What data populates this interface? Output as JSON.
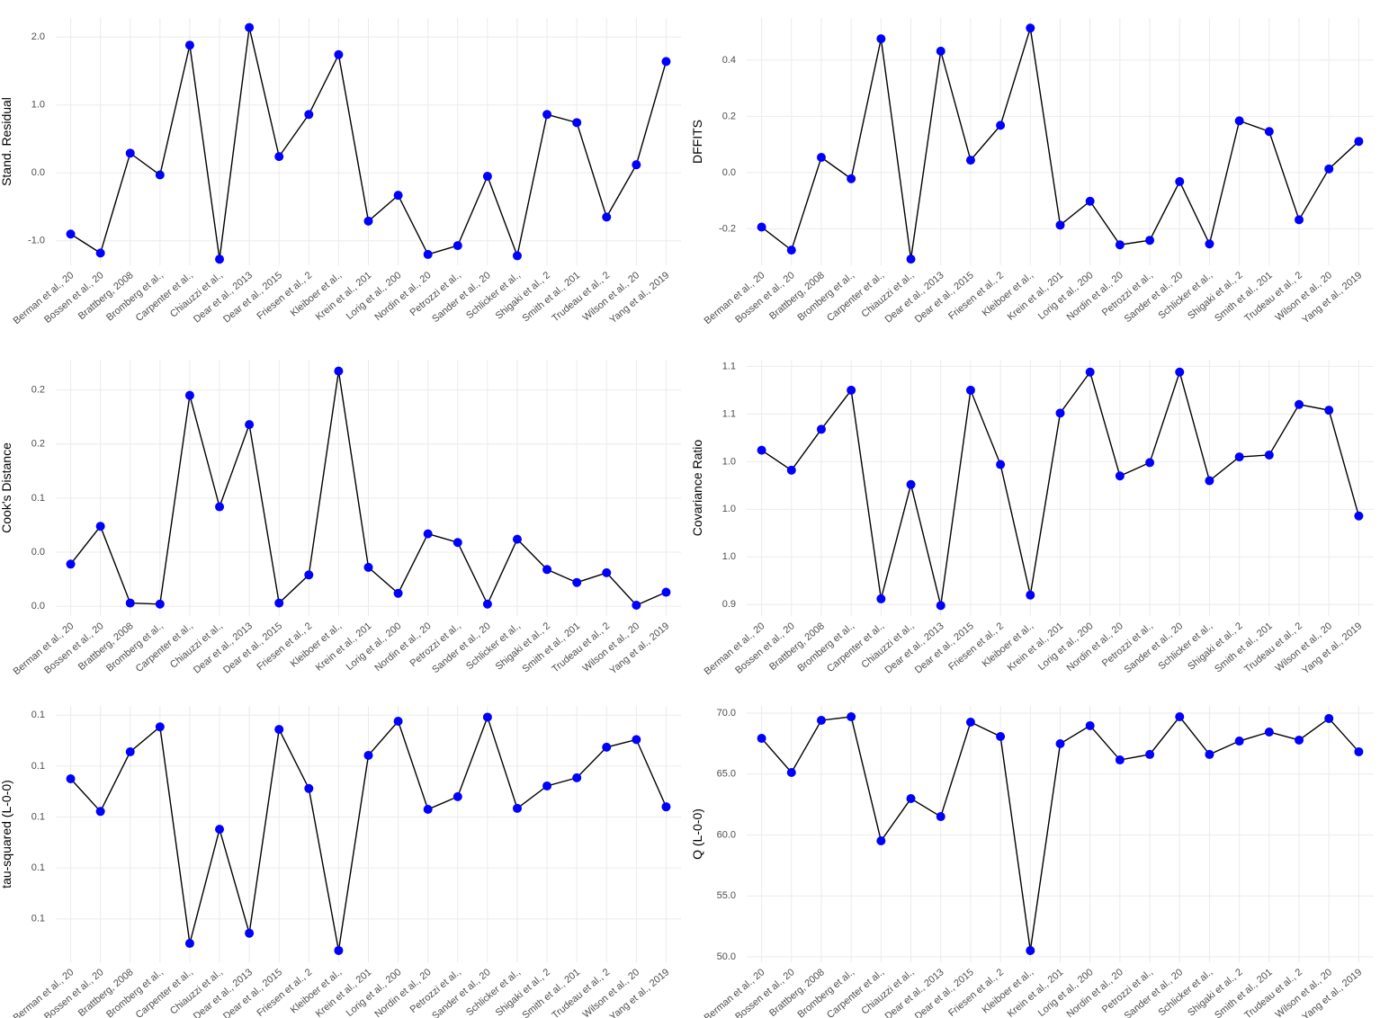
{
  "chart_data": [
    {
      "type": "line",
      "y_label": "Stand. Residual",
      "color": "#0000ff",
      "line_color": "#000000",
      "grid": true,
      "categories": [
        "Berman et al., 20",
        "Bossen et al., 20",
        "Brattberg, 2008",
        "Bromberg et al.,",
        "Carpenter et al.,",
        "Chiauzzi et al.,",
        "Dear et al., 2013",
        "Dear et al., 2015",
        "Friesen et al., 2",
        "Kleiboer et al.,",
        "Krein et al., 201",
        "Lorig et al., 200",
        "Nordin et al., 20",
        "Petrozzi et al.,",
        "Sander et al., 20",
        "Schlicker et al.,",
        "Shigaki et al., 2",
        "Smith et al., 201",
        "Trudeau et al., 2",
        "Wilson et al., 20",
        "Yang et al., 2019"
      ],
      "values": [
        -0.9,
        -1.18,
        0.29,
        -0.03,
        1.88,
        -1.27,
        2.14,
        0.24,
        0.86,
        1.74,
        -0.71,
        -0.33,
        -1.2,
        -1.07,
        -0.05,
        -1.22,
        0.86,
        0.74,
        -0.65,
        0.12,
        1.64
      ],
      "ylim": [
        -1.36,
        2.28
      ],
      "yticks": [
        {
          "value": -1,
          "label": "-1.0"
        },
        {
          "value": 0,
          "label": "0.0"
        },
        {
          "value": 1,
          "label": "1.0"
        },
        {
          "value": 2,
          "label": "2.0"
        }
      ]
    },
    {
      "type": "line",
      "y_label": "DFFITS",
      "color": "#0000ff",
      "line_color": "#000000",
      "grid": true,
      "categories": [
        "Berman et al., 20",
        "Bossen et al., 20",
        "Brattberg, 2008",
        "Bromberg et al.,",
        "Carpenter et al.,",
        "Chiauzzi et al.,",
        "Dear et al., 2013",
        "Dear et al., 2015",
        "Friesen et al., 2",
        "Kleiboer et al.,",
        "Krein et al., 201",
        "Lorig et al., 200",
        "Nordin et al., 20",
        "Petrozzi et al.,",
        "Sander et al., 20",
        "Schlicker et al.,",
        "Shigaki et al., 2",
        "Smith et al., 201",
        "Trudeau et al., 2",
        "Wilson et al., 20",
        "Yang et al., 2019"
      ],
      "values": [
        -0.194,
        -0.276,
        0.054,
        -0.022,
        0.476,
        -0.308,
        0.432,
        0.044,
        0.168,
        0.514,
        -0.187,
        -0.102,
        -0.257,
        -0.241,
        -0.032,
        -0.254,
        0.184,
        0.146,
        -0.168,
        0.013,
        0.111
      ],
      "ylim": [
        -0.33,
        0.55
      ],
      "yticks": [
        -0.2,
        {
          "value": 0,
          "label": "0.0"
        },
        0.2,
        0.4
      ]
    },
    {
      "type": "line",
      "y_label": "Cook's Distance",
      "color": "#0000ff",
      "line_color": "#000000",
      "grid": true,
      "categories": [
        "Berman et al., 20",
        "Bossen et al., 20",
        "Brattberg, 2008",
        "Bromberg et al.,",
        "Carpenter et al.,",
        "Chiauzzi et al.,",
        "Dear et al., 2013",
        "Dear et al., 2015",
        "Friesen et al., 2",
        "Kleiboer et al.,",
        "Krein et al., 201",
        "Lorig et al., 200",
        "Nordin et al., 20",
        "Petrozzi et al.,",
        "Sander et al., 20",
        "Schlicker et al.,",
        "Shigaki et al., 2",
        "Smith et al., 201",
        "Trudeau et al., 2",
        "Wilson et al., 20",
        "Yang et al., 2019"
      ],
      "values": [
        0.039,
        0.074,
        0.003,
        0.002,
        0.195,
        0.092,
        0.168,
        0.003,
        0.029,
        0.2175,
        0.036,
        0.012,
        0.067,
        0.059,
        0.002,
        0.062,
        0.034,
        0.022,
        0.031,
        0.001,
        0.013
      ],
      "ylim": [
        -0.009,
        0.228
      ],
      "yticks": [
        {
          "value": 0,
          "label": "0.0"
        },
        {
          "value": 0.05,
          "label": "0.0"
        },
        0.1,
        {
          "value": 0.15,
          "label": "0.2"
        },
        0.2
      ]
    },
    {
      "type": "line",
      "y_label": "Covariance Ratio",
      "color": "#0000ff",
      "line_color": "#000000",
      "grid": true,
      "categories": [
        "Berman et al., 20",
        "Bossen et al., 20",
        "Brattberg, 2008",
        "Bromberg et al.,",
        "Carpenter et al.,",
        "Chiauzzi et al.,",
        "Dear et al., 2013",
        "Dear et al., 2015",
        "Friesen et al., 2",
        "Kleiboer et al.,",
        "Krein et al., 201",
        "Lorig et al., 200",
        "Nordin et al., 20",
        "Petrozzi et al.,",
        "Sander et al., 20",
        "Schlicker et al.,",
        "Shigaki et al., 2",
        "Smith et al., 201",
        "Trudeau et al., 2",
        "Wilson et al., 20",
        "Yang et al., 2019"
      ],
      "values": [
        1.062,
        1.041,
        1.084,
        1.125,
        0.906,
        1.026,
        0.899,
        1.125,
        1.047,
        0.91,
        1.101,
        1.144,
        1.035,
        1.049,
        1.144,
        1.03,
        1.055,
        1.057,
        1.11,
        1.104,
        0.993
      ],
      "ylim": [
        0.888,
        1.157
      ],
      "yticks": [
        0.9,
        {
          "value": 0.95,
          "label": "1.0"
        },
        {
          "value": 1,
          "label": "1.0"
        },
        {
          "value": 1.05,
          "label": "1.0"
        },
        1.1,
        {
          "value": 1.15,
          "label": "1.1"
        }
      ]
    },
    {
      "type": "line",
      "y_label": "tau-squared (L-0-0)",
      "color": "#0000ff",
      "line_color": "#000000",
      "grid": true,
      "categories": [
        "Berman et al., 20",
        "Bossen et al., 20",
        "Brattberg, 2008",
        "Bromberg et al.,",
        "Carpenter et al.,",
        "Chiauzzi et al.,",
        "Dear et al., 2013",
        "Dear et al., 2015",
        "Friesen et al., 2",
        "Kleiboer et al.,",
        "Krein et al., 201",
        "Lorig et al., 200",
        "Nordin et al., 20",
        "Petrozzi et al.,",
        "Sander et al., 20",
        "Schlicker et al.,",
        "Shigaki et al., 2",
        "Smith et al., 201",
        "Trudeau et al., 2",
        "Wilson et al., 20",
        "Yang et al., 2019"
      ],
      "values": [
        0.1275,
        0.1211,
        0.1328,
        0.1377,
        0.0952,
        0.1176,
        0.0972,
        0.1372,
        0.1256,
        0.0938,
        0.1321,
        0.1388,
        0.1215,
        0.124,
        0.1396,
        0.1217,
        0.1261,
        0.1277,
        0.1337,
        0.1352,
        0.122
      ],
      "ylim": [
        0.0915,
        0.1418
      ],
      "yticks": [
        0.1,
        {
          "value": 0.11,
          "label": "0.1"
        },
        {
          "value": 0.12,
          "label": "0.1"
        },
        {
          "value": 0.13,
          "label": "0.1"
        },
        {
          "value": 0.14,
          "label": "0.1"
        }
      ]
    },
    {
      "type": "line",
      "y_label": "Q (L-0-0)",
      "color": "#0000ff",
      "line_color": "#000000",
      "grid": true,
      "categories": [
        "Berman et al., 20",
        "Bossen et al., 20",
        "Brattberg, 2008",
        "Bromberg et al.,",
        "Carpenter et al.,",
        "Chiauzzi et al.,",
        "Dear et al., 2013",
        "Dear et al., 2015",
        "Friesen et al., 2",
        "Kleiboer et al.,",
        "Krein et al., 201",
        "Lorig et al., 200",
        "Nordin et al., 20",
        "Petrozzi et al.,",
        "Sander et al., 20",
        "Schlicker et al.,",
        "Shigaki et al., 2",
        "Smith et al., 201",
        "Trudeau et al., 2",
        "Wilson et al., 20",
        "Yang et al., 2019"
      ],
      "values": [
        67.93,
        65.13,
        69.41,
        69.7,
        59.52,
        62.99,
        61.51,
        69.26,
        68.08,
        50.52,
        67.49,
        68.97,
        66.16,
        66.61,
        69.7,
        66.61,
        67.71,
        68.45,
        67.79,
        69.56,
        66.83
      ],
      "ylim": [
        49.56,
        70.59
      ],
      "yticks": [
        {
          "value": 50,
          "label": "50.0"
        },
        {
          "value": 55,
          "label": "55.0"
        },
        {
          "value": 60,
          "label": "60.0"
        },
        {
          "value": 65,
          "label": "65.0"
        },
        {
          "value": 70,
          "label": "70.0"
        }
      ]
    }
  ]
}
